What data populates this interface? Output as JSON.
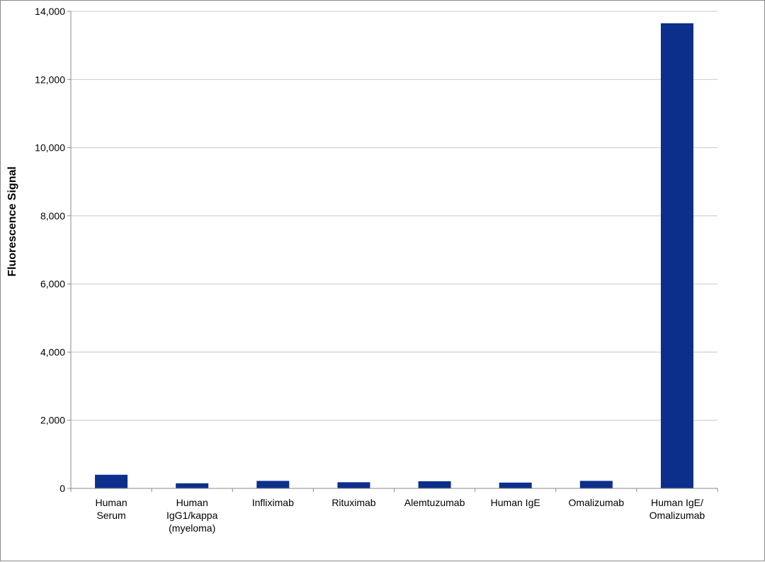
{
  "chart_data": {
    "type": "bar",
    "title": "",
    "xlabel": "",
    "ylabel": "Fluorescence Signal",
    "ylim": [
      0,
      14000
    ],
    "yticks": [
      0,
      2000,
      4000,
      6000,
      8000,
      10000,
      12000,
      14000
    ],
    "ytick_labels": [
      "0",
      "2,000",
      "4,000",
      "6,000",
      "8,000",
      "10,000",
      "12,000",
      "14,000"
    ],
    "categories": [
      "Human Serum",
      "Human IgG1/kappa (myeloma)",
      "Infliximab",
      "Rituximab",
      "Alemtuzumab",
      "Human IgE",
      "Omalizumab",
      "Human IgE/ Omalizumab"
    ],
    "category_lines": [
      [
        "Human",
        "Serum"
      ],
      [
        "Human",
        "IgG1/kappa",
        "(myeloma)"
      ],
      [
        "Infliximab"
      ],
      [
        "Rituximab"
      ],
      [
        "Alemtuzumab"
      ],
      [
        "Human IgE"
      ],
      [
        "Omalizumab"
      ],
      [
        "Human IgE/",
        "Omalizumab"
      ]
    ],
    "values": [
      400,
      150,
      220,
      180,
      210,
      170,
      220,
      13650
    ],
    "grid": true,
    "legend": "none",
    "bar_color": "#0b2f8a"
  }
}
